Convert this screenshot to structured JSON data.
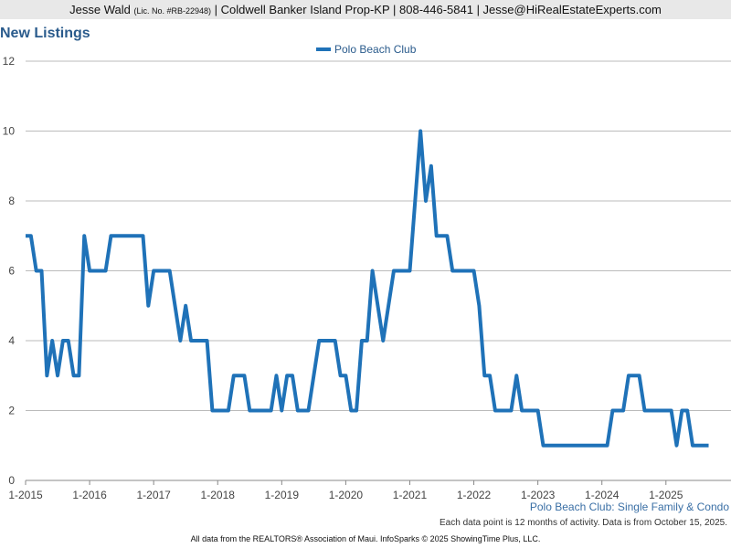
{
  "header": {
    "name": "Jesse Wald",
    "license": "(Lic. No. #RB-22948)",
    "details": "| Coldwell Banker Island Prop-KP | 808-446-5841 | Jesse@HiRealEstateExperts.com"
  },
  "chart_data": {
    "type": "line",
    "title": "New Listings",
    "categories": [
      "1-2015",
      null,
      null,
      null,
      null,
      null,
      null,
      null,
      null,
      null,
      null,
      null,
      "1-2016",
      null,
      null,
      null,
      null,
      null,
      null,
      null,
      null,
      null,
      null,
      null,
      "1-2017",
      null,
      null,
      null,
      null,
      null,
      null,
      null,
      null,
      null,
      null,
      null,
      "1-2018",
      null,
      null,
      null,
      null,
      null,
      null,
      null,
      null,
      null,
      null,
      null,
      "1-2019",
      null,
      null,
      null,
      null,
      null,
      null,
      null,
      null,
      null,
      null,
      null,
      "1-2020",
      null,
      null,
      null,
      null,
      null,
      null,
      null,
      null,
      null,
      null,
      null,
      "1-2021",
      null,
      null,
      null,
      null,
      null,
      null,
      null,
      null,
      null,
      null,
      null,
      "1-2022",
      null,
      null,
      null,
      null,
      null,
      null,
      null,
      null,
      null,
      null,
      null,
      "1-2023",
      null,
      null,
      null,
      null,
      null,
      null,
      null,
      null,
      null,
      null,
      null,
      "1-2024",
      null,
      null,
      null,
      null,
      null,
      null,
      null,
      null,
      null,
      null,
      null,
      "1-2025",
      null,
      null,
      null,
      null,
      null,
      null,
      null,
      null
    ],
    "series": [
      {
        "name": "Polo Beach Club",
        "color": "#1f72b8",
        "values": [
          7,
          7,
          6,
          6,
          3,
          4,
          3,
          4,
          4,
          3,
          3,
          7,
          6,
          6,
          6,
          6,
          7,
          7,
          7,
          7,
          7,
          7,
          7,
          5,
          6,
          6,
          6,
          6,
          5,
          4,
          5,
          4,
          4,
          4,
          4,
          2,
          2,
          2,
          2,
          3,
          3,
          3,
          2,
          2,
          2,
          2,
          2,
          3,
          2,
          3,
          3,
          2,
          2,
          2,
          3,
          4,
          4,
          4,
          4,
          3,
          3,
          2,
          2,
          4,
          4,
          6,
          5,
          4,
          5,
          6,
          6,
          6,
          6,
          8,
          10,
          8,
          9,
          7,
          7,
          7,
          6,
          6,
          6,
          6,
          6,
          5,
          3,
          3,
          2,
          2,
          2,
          2,
          3,
          2,
          2,
          2,
          2,
          1,
          1,
          1,
          1,
          1,
          1,
          1,
          1,
          1,
          1,
          1,
          1,
          1,
          2,
          2,
          2,
          3,
          3,
          3,
          2,
          2,
          2,
          2,
          2,
          2,
          1,
          2,
          2,
          1,
          1,
          1,
          1
        ]
      }
    ],
    "ylim": [
      0,
      12
    ],
    "yticks": [
      0,
      2,
      4,
      6,
      8,
      10,
      12
    ],
    "grid": true,
    "legend": "top",
    "caption": "Polo Beach Club: Single Family & Condo",
    "note": "Each data point is 12 months of activity. Data is from October 15, 2025.",
    "source": "All data from the REALTORS® Association of Maui. InfoSparks © 2025 ShowingTime Plus, LLC."
  }
}
